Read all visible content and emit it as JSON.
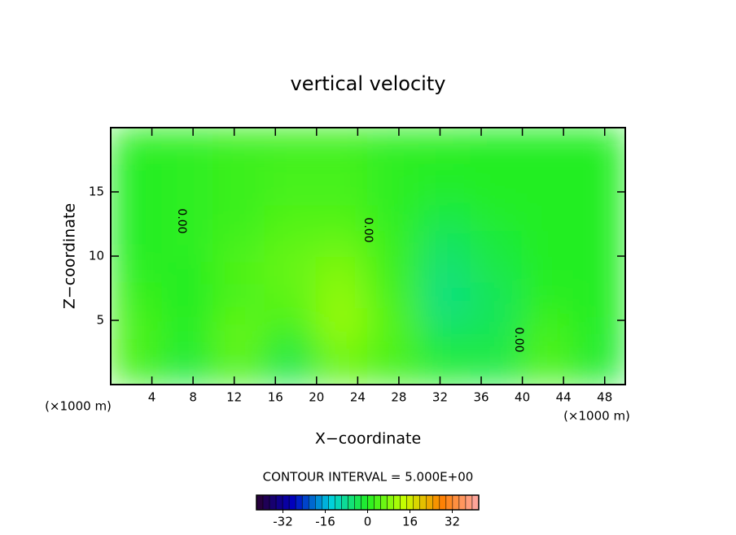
{
  "chart_data": {
    "type": "contour",
    "title": "vertical velocity",
    "x_label": "X−coordinate",
    "y_label": "Z−coordinate",
    "x_unit": "(×1000 m)",
    "y_unit": "(×1000 m)",
    "xlim": [
      0,
      50
    ],
    "ylim": [
      0,
      20
    ],
    "xticks": [
      4,
      8,
      12,
      16,
      20,
      24,
      28,
      32,
      36,
      40,
      44,
      48
    ],
    "yticks": [
      5,
      10,
      15
    ],
    "x": [
      2.5,
      7.5,
      12.5,
      17.5,
      22.5,
      27.5,
      32.5,
      37.5,
      42.5,
      47.5
    ],
    "y": [
      1,
      3,
      5,
      7,
      9,
      11,
      13,
      15,
      17,
      19
    ],
    "z": [
      [
        2,
        -2,
        3,
        -3,
        5,
        2,
        0,
        -2,
        3,
        -1
      ],
      [
        4,
        -1,
        6,
        -2,
        8,
        4,
        -3,
        -3,
        4,
        -1
      ],
      [
        3,
        0,
        5,
        4,
        10,
        4,
        -6,
        -4,
        2,
        0
      ],
      [
        2,
        0,
        3,
        5,
        9,
        3,
        -7,
        -4,
        1,
        0
      ],
      [
        1,
        0,
        4,
        6,
        8,
        2,
        -6,
        -3,
        0,
        0
      ],
      [
        0,
        1,
        3,
        5,
        6,
        2,
        -5,
        -2,
        0,
        0
      ],
      [
        0,
        1,
        2,
        4,
        4,
        1,
        -3,
        -1,
        0,
        0
      ],
      [
        0,
        1,
        2,
        3,
        3,
        1,
        -1,
        0,
        0,
        0
      ],
      [
        0,
        1,
        2,
        3,
        3,
        1,
        0,
        0,
        0,
        0
      ],
      [
        1,
        1,
        2,
        2,
        2,
        1,
        1,
        0,
        0,
        0
      ]
    ],
    "contour_level": {
      "value": 0,
      "label": "0.00"
    },
    "contour_interval_text": "CONTOUR INTERVAL = 5.000E+00",
    "colormap": [
      "#2a0030",
      "#0000c0",
      "#00d0e0",
      "#22ee22",
      "#c8ff00",
      "#ff8000",
      "#ffa8a8"
    ],
    "clim": [
      -42,
      42
    ],
    "cticks": [
      -32,
      -16,
      0,
      16,
      32
    ]
  }
}
